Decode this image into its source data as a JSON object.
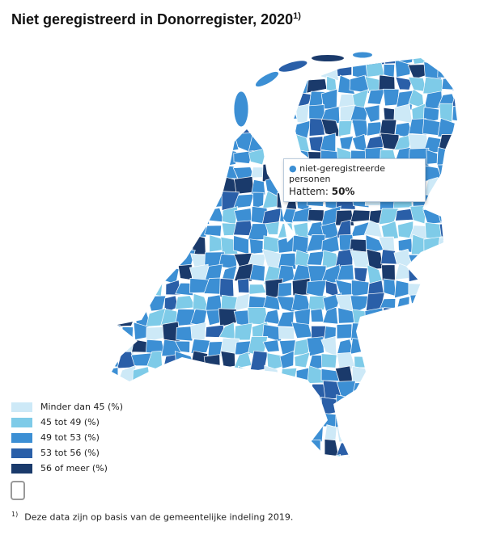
{
  "header": {
    "title": "Niet geregistreerd in Donorregister, 2020",
    "superscript": "1)"
  },
  "tooltip": {
    "series": "niet-geregistreerde personen",
    "label": "Hattem:",
    "value": "50%"
  },
  "legend": [
    {
      "label": "Minder dan 45 (%)",
      "color": "#cde9f7"
    },
    {
      "label": "45 tot 49 (%)",
      "color": "#7ecbe8"
    },
    {
      "label": "49 tot 53 (%)",
      "color": "#3c8fd4"
    },
    {
      "label": "53 tot 56 (%)",
      "color": "#2a5fa8"
    },
    {
      "label": "56 of meer (%)",
      "color": "#1a3a6b"
    }
  ],
  "footnote": {
    "marker": "1)",
    "text": "Deze data zijn op basis van de gemeentelijke indeling 2019."
  }
}
